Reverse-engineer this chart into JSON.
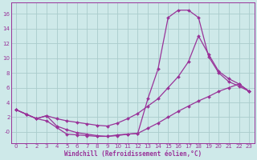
{
  "xlabel": "Windchill (Refroidissement éolien,°C)",
  "background_color": "#cee9e9",
  "grid_color": "#aacccc",
  "line_color": "#993399",
  "xlim": [
    -0.5,
    23.5
  ],
  "ylim": [
    -1.5,
    17.5
  ],
  "yticks": [
    0,
    2,
    4,
    6,
    8,
    10,
    12,
    14,
    16
  ],
  "ytick_labels": [
    "-0",
    "2",
    "4",
    "6",
    "8",
    "10",
    "12",
    "14",
    "16"
  ],
  "xticks": [
    0,
    1,
    2,
    3,
    4,
    5,
    6,
    7,
    8,
    9,
    10,
    11,
    12,
    13,
    14,
    15,
    16,
    17,
    18,
    19,
    20,
    21,
    22,
    23
  ],
  "curve1_x": [
    0,
    1,
    2,
    3,
    4,
    5,
    6,
    7,
    8,
    9,
    10,
    11,
    12,
    13,
    14,
    15,
    16,
    17,
    18,
    19,
    20,
    21,
    22,
    23
  ],
  "curve1_y": [
    3.0,
    2.4,
    1.8,
    2.2,
    0.8,
    0.3,
    -0.1,
    -0.3,
    -0.5,
    -0.6,
    -0.5,
    -0.3,
    -0.2,
    4.5,
    8.5,
    15.5,
    16.5,
    16.5,
    15.5,
    10.2,
    8.0,
    6.8,
    6.2,
    5.5
  ],
  "curve2_x": [
    0,
    1,
    2,
    3,
    4,
    5,
    6,
    7,
    8,
    9,
    10,
    11,
    12,
    13,
    14,
    15,
    16,
    17,
    18,
    19,
    20,
    21,
    22,
    23
  ],
  "curve2_y": [
    3.0,
    2.4,
    1.8,
    2.2,
    1.8,
    1.5,
    1.3,
    1.1,
    0.9,
    0.8,
    1.2,
    1.8,
    2.5,
    3.5,
    4.5,
    6.0,
    7.5,
    9.5,
    13.0,
    10.5,
    8.2,
    7.2,
    6.5,
    5.5
  ],
  "curve3_x": [
    0,
    1,
    2,
    3,
    4,
    5,
    6,
    7,
    8,
    9,
    10,
    11,
    12,
    13,
    14,
    15,
    16,
    17,
    18,
    19,
    20,
    21,
    22,
    23
  ],
  "curve3_y": [
    3.0,
    2.4,
    1.8,
    1.5,
    0.6,
    -0.3,
    -0.4,
    -0.5,
    -0.6,
    -0.6,
    -0.4,
    -0.3,
    -0.2,
    0.5,
    1.2,
    2.0,
    2.8,
    3.5,
    4.2,
    4.8,
    5.5,
    6.0,
    6.5,
    5.5
  ],
  "marker": "D",
  "markersize": 2.0,
  "linewidth": 0.9,
  "xlabel_fontsize": 5.5,
  "tick_fontsize": 5.0
}
